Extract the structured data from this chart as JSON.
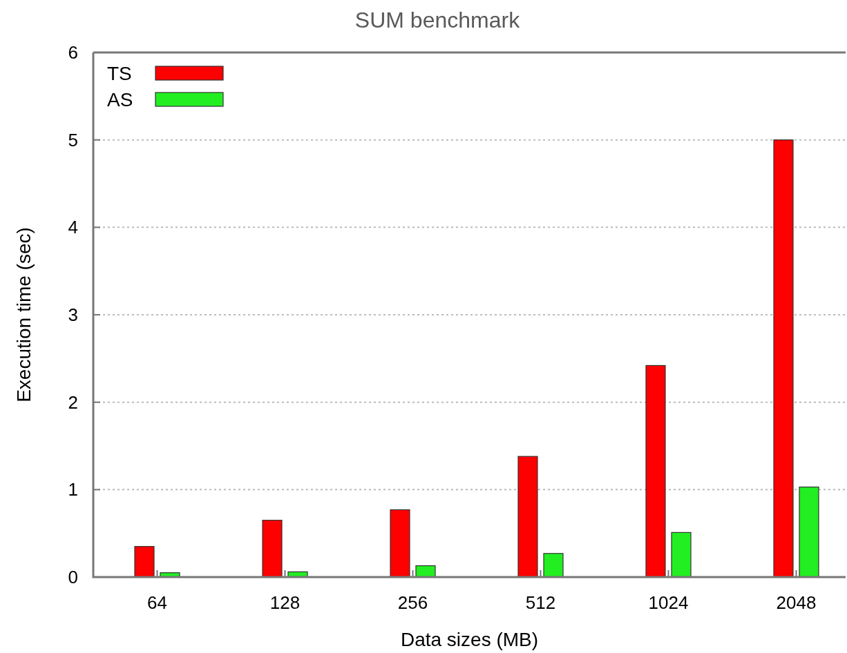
{
  "chart_data": {
    "type": "bar",
    "title": "SUM benchmark",
    "xlabel": "Data sizes (MB)",
    "ylabel": "Execution time (sec)",
    "categories": [
      "64",
      "128",
      "256",
      "512",
      "1024",
      "2048"
    ],
    "series": [
      {
        "name": "TS",
        "color": "#ff0000",
        "values": [
          0.35,
          0.65,
          0.77,
          1.38,
          2.42,
          5.0
        ]
      },
      {
        "name": "AS",
        "color": "#22ee22",
        "values": [
          0.05,
          0.06,
          0.13,
          0.27,
          0.51,
          1.03
        ]
      }
    ],
    "ylim": [
      0,
      6
    ],
    "yticks": [
      0,
      1,
      2,
      3,
      4,
      5,
      6
    ],
    "grid": "y",
    "legend": "top left"
  }
}
